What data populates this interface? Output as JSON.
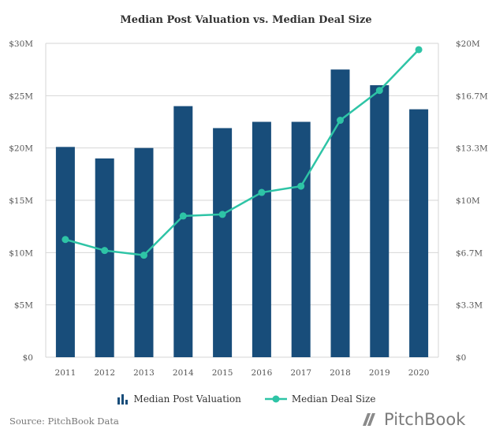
{
  "chart_data": {
    "type": "bar",
    "title": "Median Post Valuation vs. Median Deal Size",
    "categories": [
      "2011",
      "2012",
      "2013",
      "2014",
      "2015",
      "2016",
      "2017",
      "2018",
      "2019",
      "2020"
    ],
    "series": [
      {
        "name": "Median Post Valuation",
        "type": "bar",
        "axis": "left",
        "color": "#184d7a",
        "values": [
          20.1,
          19.0,
          20.0,
          24.0,
          21.9,
          22.5,
          22.5,
          27.5,
          26.0,
          23.7
        ]
      },
      {
        "name": "Median Deal Size",
        "type": "line",
        "axis": "right",
        "color": "#2ec4a6",
        "values": [
          7.5,
          6.8,
          6.5,
          9.0,
          9.1,
          10.5,
          10.9,
          15.1,
          17.0,
          19.6
        ]
      }
    ],
    "y_left": {
      "ylim": [
        0,
        30
      ],
      "ticks": [
        "$0",
        "$5M",
        "$10M",
        "$15M",
        "$20M",
        "$25M",
        "$30M"
      ]
    },
    "y_right": {
      "ylim": [
        0,
        20
      ],
      "ticks": [
        "$0",
        "$3.3M",
        "$6.7M",
        "$10M",
        "$13.3M",
        "$16.7M",
        "$20M"
      ]
    },
    "grid": true,
    "legend_position": "bottom"
  },
  "footer": {
    "source": "Source: PitchBook Data",
    "brand": "PitchBook"
  },
  "colors": {
    "bar": "#184d7a",
    "line": "#2ec4a6",
    "grid": "#d6d6d6",
    "axis_text": "#555555"
  }
}
